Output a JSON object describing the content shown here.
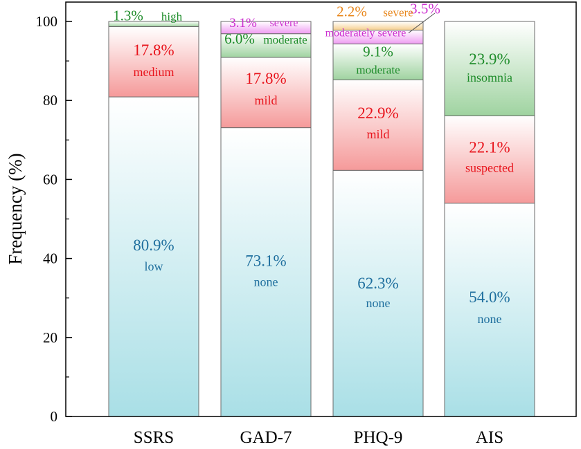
{
  "chart_data": {
    "type": "bar",
    "stacked": true,
    "ylabel": "Frequency (%)",
    "xlabel": "",
    "ylim": [
      0,
      100
    ],
    "yticks": [
      0,
      20,
      40,
      60,
      80,
      100
    ],
    "categories": [
      "SSRS",
      "GAD-7",
      "PHQ-9",
      "AIS"
    ],
    "colors": {
      "blue": "#1f6f9e",
      "red": "#e8141c",
      "green": "#1e8c2a",
      "magenta": "#cc2fd0",
      "orange": "#e8861a"
    },
    "bars": [
      {
        "category": "SSRS",
        "segments": [
          {
            "value": 80.9,
            "pct": "80.9%",
            "name": "low",
            "style": "blue"
          },
          {
            "value": 17.8,
            "pct": "17.8%",
            "name": "medium",
            "style": "red"
          },
          {
            "value": 1.3,
            "pct": "1.3%",
            "name": "high",
            "style": "green"
          }
        ]
      },
      {
        "category": "GAD-7",
        "segments": [
          {
            "value": 73.1,
            "pct": "73.1%",
            "name": "none",
            "style": "blue"
          },
          {
            "value": 17.8,
            "pct": "17.8%",
            "name": "mild",
            "style": "red"
          },
          {
            "value": 6.0,
            "pct": "6.0%",
            "name": "moderate",
            "style": "green"
          },
          {
            "value": 3.1,
            "pct": "3.1%",
            "name": "severe",
            "style": "magenta"
          }
        ]
      },
      {
        "category": "PHQ-9",
        "segments": [
          {
            "value": 62.3,
            "pct": "62.3%",
            "name": "none",
            "style": "blue"
          },
          {
            "value": 22.9,
            "pct": "22.9%",
            "name": "mild",
            "style": "red"
          },
          {
            "value": 9.1,
            "pct": "9.1%",
            "name": "moderate",
            "style": "green"
          },
          {
            "value": 3.5,
            "pct": "3.5%",
            "name": "moderately severe",
            "style": "magenta"
          },
          {
            "value": 2.2,
            "pct": "2.2%",
            "name": "severe",
            "style": "orange"
          }
        ]
      },
      {
        "category": "AIS",
        "segments": [
          {
            "value": 54.0,
            "pct": "54.0%",
            "name": "none",
            "style": "blue"
          },
          {
            "value": 22.1,
            "pct": "22.1%",
            "name": "suspected",
            "style": "red"
          },
          {
            "value": 23.9,
            "pct": "23.9%",
            "name": "insomnia",
            "style": "green"
          }
        ]
      }
    ]
  }
}
